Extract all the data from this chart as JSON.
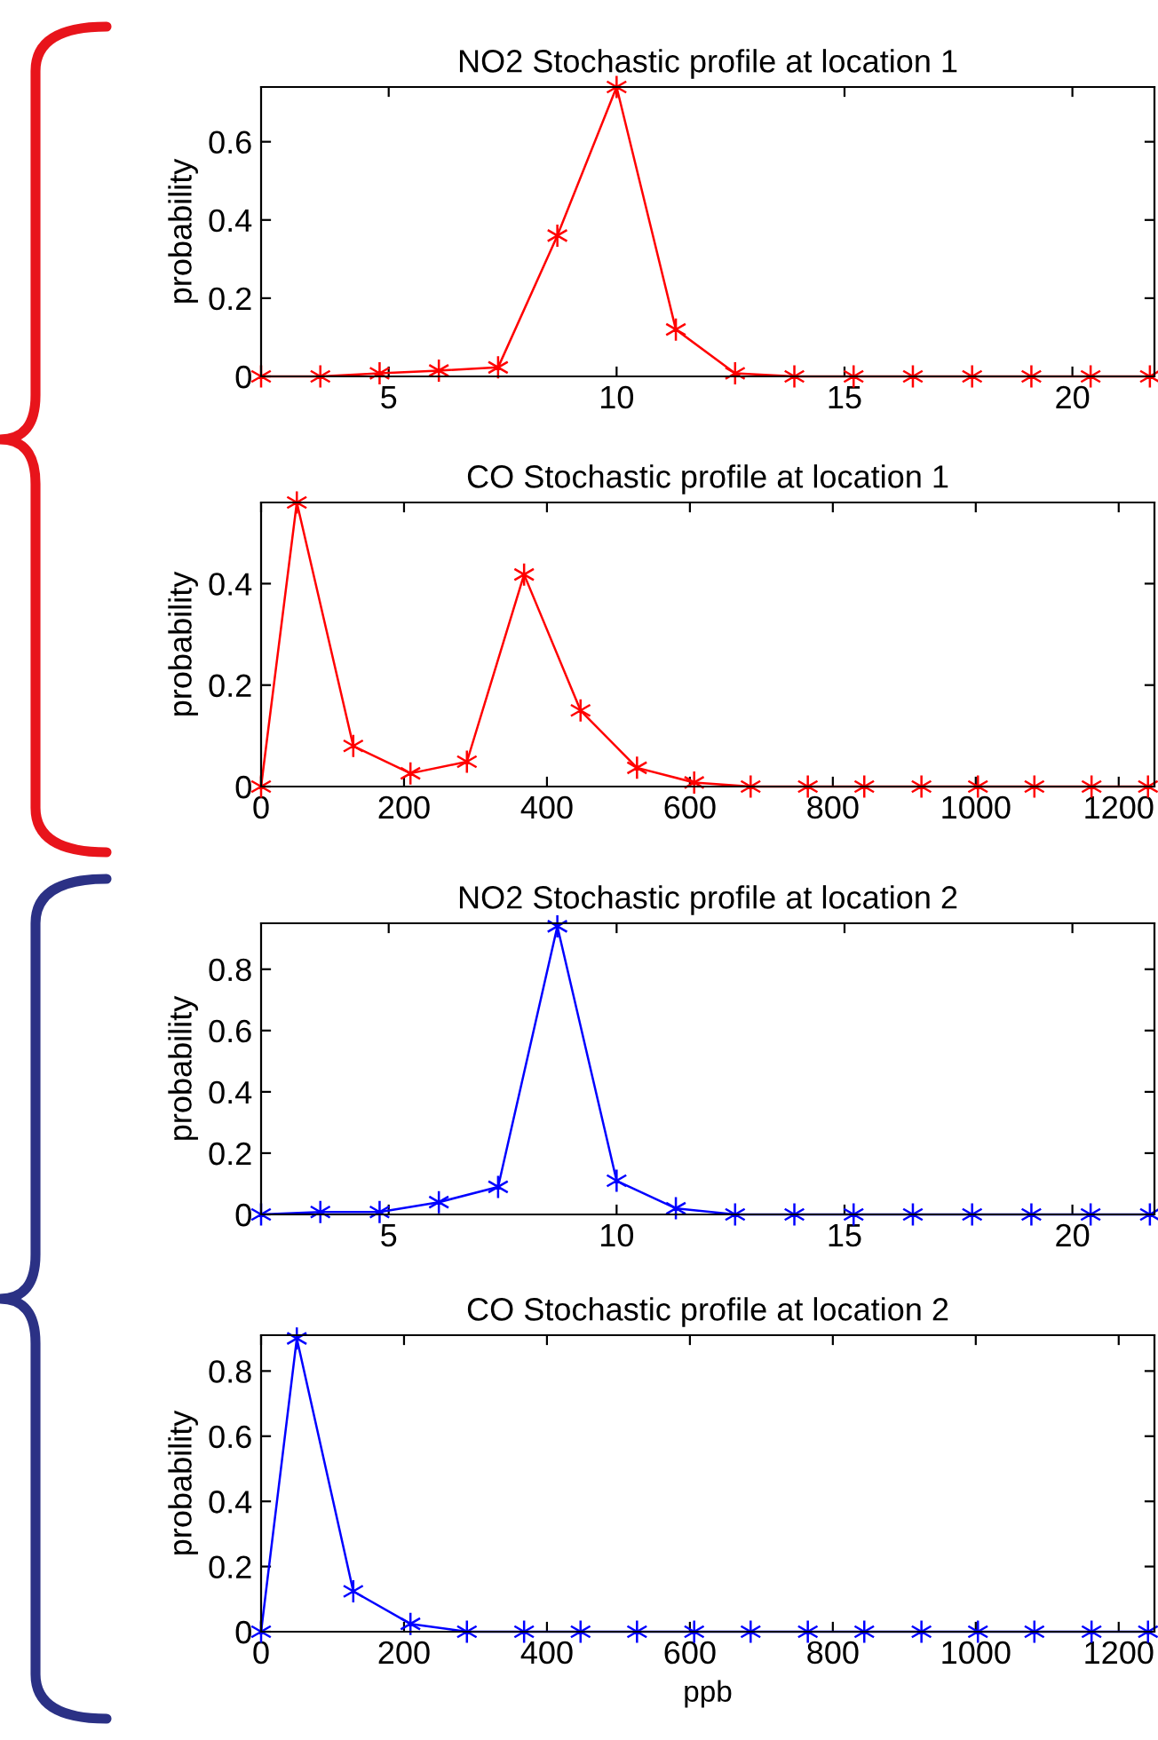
{
  "chart_data": [
    {
      "type": "line",
      "title": "NO2 Stochastic profile at location 1",
      "ylabel": "probability",
      "marker": "cross",
      "x": [
        2.2,
        3.5,
        4.8,
        6.1,
        7.4,
        8.7,
        10,
        11.3,
        12.6,
        13.9,
        15.2,
        16.5,
        17.8,
        19.1,
        20.4,
        21.7
      ],
      "series": [
        {
          "color": "#ff0000",
          "values": [
            0,
            0,
            0.008,
            0.015,
            0.023,
            0.36,
            0.74,
            0.12,
            0.008,
            0,
            0,
            0,
            0,
            0,
            0,
            0
          ]
        }
      ],
      "xlim": [
        2.2,
        21.8
      ],
      "ylim": [
        0,
        0.74
      ],
      "xticks": [
        5,
        10,
        15,
        20
      ],
      "yticks": [
        0,
        0.2,
        0.4,
        0.6
      ]
    },
    {
      "type": "line",
      "title": "CO Stochastic profile at location 1",
      "ylabel": "probability",
      "marker": "cross",
      "x": [
        0,
        50,
        129,
        209,
        288,
        368,
        447,
        526,
        606,
        685,
        765,
        844,
        924,
        1003,
        1082,
        1162,
        1241
      ],
      "series": [
        {
          "color": "#ff0000",
          "values": [
            0,
            0.56,
            0.08,
            0.026,
            0.049,
            0.418,
            0.15,
            0.037,
            0.008,
            0,
            0,
            0,
            0,
            0,
            0,
            0,
            0
          ]
        }
      ],
      "xlim": [
        0,
        1250
      ],
      "ylim": [
        0,
        0.56
      ],
      "xticks": [
        0,
        200,
        400,
        600,
        800,
        1000,
        1200
      ],
      "yticks": [
        0,
        0.2,
        0.4
      ]
    },
    {
      "type": "line",
      "title": "NO2 Stochastic profile at location 2",
      "ylabel": "probability",
      "marker": "cross",
      "x": [
        2.2,
        3.5,
        4.8,
        6.1,
        7.4,
        8.7,
        10,
        11.3,
        12.6,
        13.9,
        15.2,
        16.5,
        17.8,
        19.1,
        20.4,
        21.7
      ],
      "series": [
        {
          "color": "#0000ff",
          "values": [
            0,
            0.008,
            0.008,
            0.04,
            0.09,
            0.94,
            0.11,
            0.02,
            0,
            0,
            0,
            0,
            0,
            0,
            0,
            0
          ]
        }
      ],
      "xlim": [
        2.2,
        21.8
      ],
      "ylim": [
        0,
        0.95
      ],
      "xticks": [
        5,
        10,
        15,
        20
      ],
      "yticks": [
        0,
        0.2,
        0.4,
        0.6,
        0.8
      ]
    },
    {
      "type": "line",
      "title": "CO Stochastic profile at location 2",
      "ylabel": "probability",
      "xlabel": "ppb",
      "marker": "cross",
      "x": [
        0,
        50,
        129,
        209,
        288,
        368,
        447,
        526,
        606,
        685,
        765,
        844,
        924,
        1003,
        1082,
        1162,
        1241
      ],
      "series": [
        {
          "color": "#0000ff",
          "values": [
            0,
            0.9,
            0.124,
            0.024,
            0,
            0,
            0,
            0,
            0,
            0,
            0,
            0,
            0,
            0,
            0,
            0,
            0
          ]
        }
      ],
      "xlim": [
        0,
        1250
      ],
      "ylim": [
        0,
        0.91
      ],
      "xticks": [
        0,
        200,
        400,
        600,
        800,
        1000,
        1200
      ],
      "yticks": [
        0,
        0.2,
        0.4,
        0.6,
        0.8
      ]
    }
  ]
}
